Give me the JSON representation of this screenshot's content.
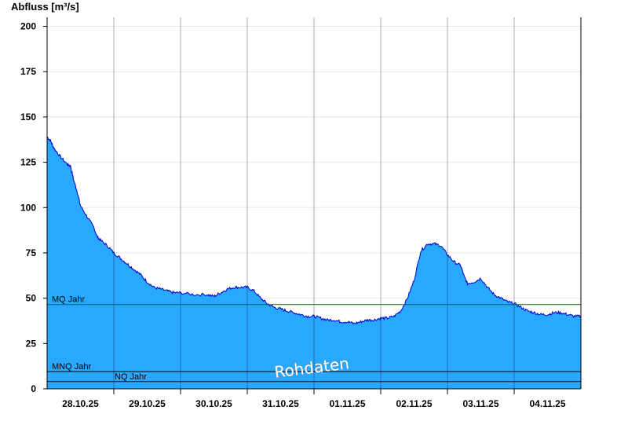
{
  "chart_data": {
    "type": "area",
    "title": "",
    "ylabel": "Abfluss [m³/s]",
    "xlabel": "",
    "ylim": [
      0,
      205
    ],
    "yticks": [
      0,
      25,
      50,
      75,
      100,
      125,
      150,
      175,
      200
    ],
    "x_tick_labels": [
      "28.10.25",
      "29.10.25",
      "30.10.25",
      "31.10.25",
      "01.11.25",
      "02.11.25",
      "03.11.25",
      "04.11.25"
    ],
    "xlim_days": [
      0,
      8
    ],
    "grid": true,
    "area_color": "#29a8ff",
    "line_color": "#0000cc",
    "series": [
      {
        "x": [
          0,
          0.05,
          0.1,
          0.2,
          0.3,
          0.35,
          0.4,
          0.45,
          0.5,
          0.6,
          0.7,
          0.75,
          0.8,
          0.9,
          1.0,
          1.1,
          1.2,
          1.3,
          1.4,
          1.5,
          1.6,
          1.7,
          1.8,
          1.9,
          2.0,
          2.2,
          2.4,
          2.5,
          2.6,
          2.7,
          2.8,
          2.9,
          3.0,
          3.1,
          3.2,
          3.3,
          3.4,
          3.5,
          3.6,
          3.7,
          3.8,
          3.9,
          4.0,
          4.1,
          4.2,
          4.3,
          4.4,
          4.5,
          4.6,
          4.7,
          4.8,
          4.9,
          5.0,
          5.1,
          5.2,
          5.3,
          5.4,
          5.5,
          5.6,
          5.7,
          5.8,
          5.9,
          6.0,
          6.1,
          6.2,
          6.25,
          6.3,
          6.4,
          6.5,
          6.6,
          6.7,
          6.8,
          6.9,
          7.0,
          7.1,
          7.2,
          7.3,
          7.4,
          7.5,
          7.6,
          7.7,
          7.8,
          7.9,
          8.0
        ],
        "y": [
          139,
          137,
          133,
          128,
          124,
          123,
          115,
          109,
          101,
          95,
          89,
          84,
          82,
          79,
          75,
          72,
          69,
          66,
          63,
          59,
          56,
          55,
          54,
          53,
          53,
          52,
          52,
          51,
          53,
          55,
          56,
          56,
          56,
          54,
          50,
          47,
          45,
          44,
          43,
          42,
          41,
          40,
          40,
          39,
          38,
          38,
          37,
          37,
          36,
          37,
          38,
          38,
          39,
          39,
          40,
          43,
          50,
          60,
          76,
          80,
          80,
          79,
          74,
          70,
          68,
          62,
          58,
          59,
          61,
          56,
          52,
          50,
          48,
          47,
          45,
          43,
          42,
          41,
          41,
          42,
          42,
          41,
          40,
          40
        ]
      }
    ],
    "reference_lines": [
      {
        "name": "MQ Jahr",
        "value": 46.5,
        "color": "#007700"
      },
      {
        "name": "MNQ Jahr",
        "value": 9.5,
        "color": "#000000"
      },
      {
        "name": "NQ Jahr",
        "value": 4,
        "color": "#000000"
      }
    ],
    "watermark": "Rohdaten"
  }
}
